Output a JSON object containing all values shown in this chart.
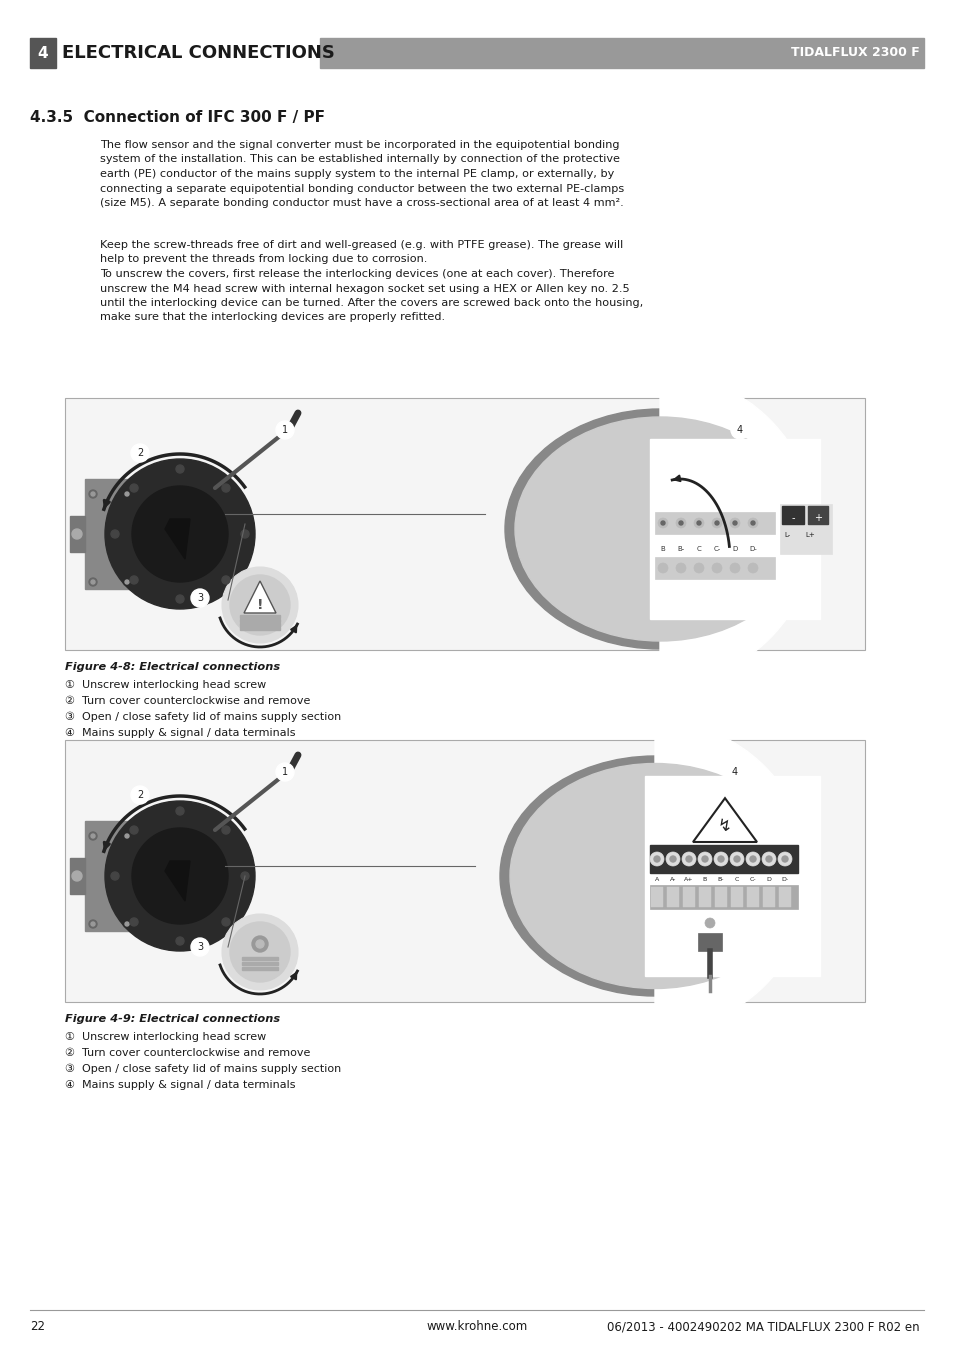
{
  "page_bg": "#ffffff",
  "header_text": "ELECTRICAL CONNECTIONS",
  "header_right": "TIDALFLUX 2300 F",
  "header_num": "4",
  "section_title": "4.3.5  Connection of IFC 300 F / PF",
  "para1_lines": [
    "The flow sensor and the signal converter must be incorporated in the equipotential bonding",
    "system of the installation. This can be established internally by connection of the protective",
    "earth (PE) conductor of the mains supply system to the internal PE clamp, or externally, by",
    "connecting a separate equipotential bonding conductor between the two external PE-clamps",
    "(size M5). A separate bonding conductor must have a cross-sectional area of at least 4 mm²."
  ],
  "para2_lines": [
    "Keep the screw-threads free of dirt and well-greased (e.g. with PTFE grease). The grease will",
    "help to prevent the threads from locking due to corrosion.",
    "To unscrew the covers, first release the interlocking devices (one at each cover). Therefore",
    "unscrew the M4 head screw with internal hexagon socket set using a HEX or Allen key no. 2.5",
    "until the interlocking device can be turned. After the covers are screwed back onto the housing,",
    "make sure that the interlocking devices are properly refitted."
  ],
  "fig1_caption": "Figure 4-8: Electrical connections",
  "fig1_items": [
    "①  Unscrew interlocking head screw",
    "②  Turn cover counterclockwise and remove",
    "③  Open / close safety lid of mains supply section",
    "④  Mains supply & signal / data terminals"
  ],
  "fig2_caption": "Figure 4-9: Electrical connections",
  "fig2_items": [
    "①  Unscrew interlocking head screw",
    "②  Turn cover counterclockwise and remove",
    "③  Open / close safety lid of mains supply section",
    "④  Mains supply & signal / data terminals"
  ],
  "footer_page": "22",
  "footer_center": "www.krohne.com",
  "footer_right": "06/2013 - 4002490202 MA TIDALFLUX 2300 F R02 en"
}
